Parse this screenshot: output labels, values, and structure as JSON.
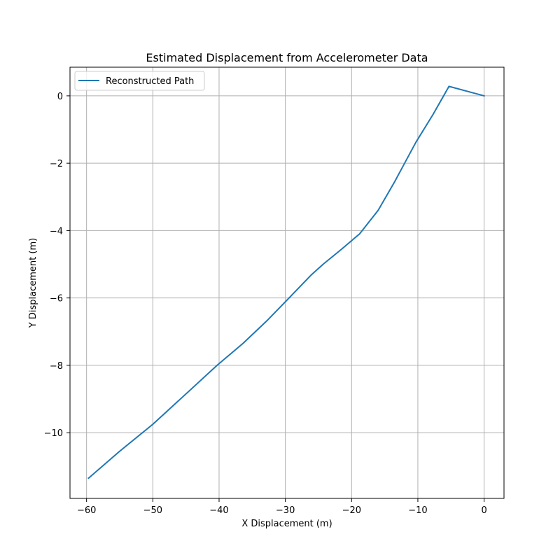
{
  "chart_data": {
    "type": "line",
    "title": "Estimated Displacement from Accelerometer Data",
    "xlabel": "X Displacement (m)",
    "ylabel": "Y Displacement (m)",
    "xlim": [
      -62.5,
      3.0
    ],
    "ylim": [
      -11.95,
      0.85
    ],
    "xticks": [
      -60,
      -50,
      -40,
      -30,
      -20,
      -10,
      0
    ],
    "xtick_labels": [
      "−60",
      "−50",
      "−40",
      "−30",
      "−20",
      "−10",
      "0"
    ],
    "yticks": [
      -10,
      -8,
      -6,
      -4,
      -2,
      0
    ],
    "ytick_labels": [
      "−10",
      "−8",
      "−6",
      "−4",
      "−2",
      "0"
    ],
    "grid": true,
    "legend": {
      "placement": "top-left"
    },
    "series": [
      {
        "name": "Reconstructed Path",
        "color": "#1f77b4",
        "x": [
          0,
          -5.3,
          -7.7,
          -10.3,
          -12.0,
          -13.5,
          -16.0,
          -18.8,
          -21.5,
          -24.3,
          -26.1,
          -29.2,
          -32.8,
          -36.4,
          -40.3,
          -45.0,
          -50.0,
          -55.0,
          -59.7
        ],
        "y": [
          0,
          0.28,
          -0.55,
          -1.38,
          -2.0,
          -2.55,
          -3.4,
          -4.1,
          -4.55,
          -5.0,
          -5.32,
          -5.95,
          -6.68,
          -7.35,
          -8.0,
          -8.85,
          -9.75,
          -10.55,
          -11.35
        ]
      }
    ]
  }
}
